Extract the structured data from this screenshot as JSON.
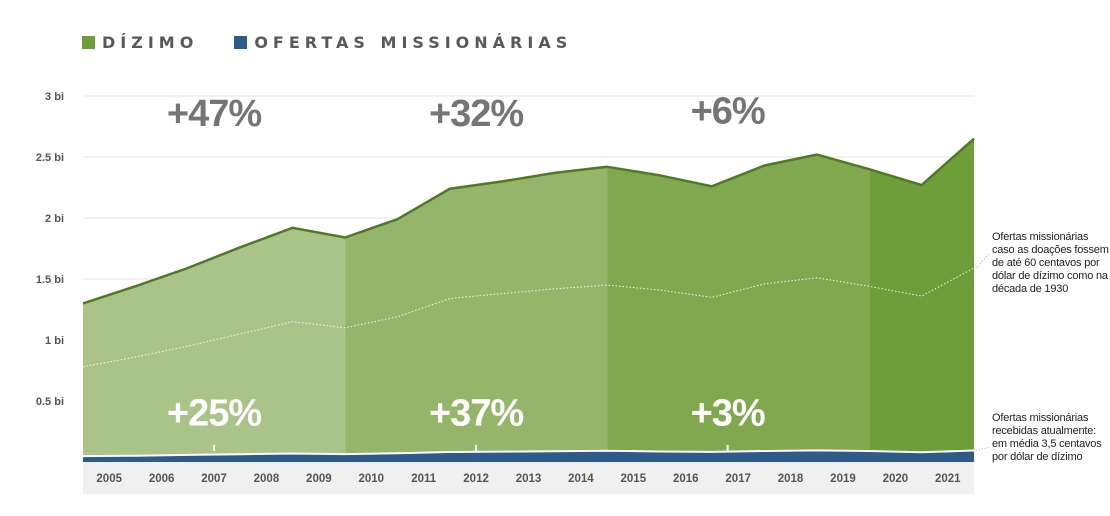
{
  "legend": {
    "items": [
      {
        "label": "DÍZIMO",
        "color": "#6e9e3a"
      },
      {
        "label": "OFERTAS MISSIONÁRIAS",
        "color": "#2f5b8a"
      }
    ]
  },
  "notes": {
    "projection": "Ofertas missionárias caso as doações fossem de até 60 centavos por dólar de dízimo como na década de 1930",
    "actual": "Ofertas missionárias recebidas atualmente: em média 3,5 centavos por dólar de dízimo"
  },
  "chart_data": {
    "type": "area",
    "categories": [
      "2005",
      "2006",
      "2007",
      "2008",
      "2009",
      "2010",
      "2011",
      "2012",
      "2013",
      "2014",
      "2015",
      "2016",
      "2017",
      "2018",
      "2019",
      "2020",
      "2021"
    ],
    "x_start": 2004.5,
    "x_end": 2021.5,
    "y_ticks": [
      {
        "value": 0.5,
        "label": "0.5 bi"
      },
      {
        "value": 1.0,
        "label": "1 bi"
      },
      {
        "value": 1.5,
        "label": "1.5 bi"
      },
      {
        "value": 2.0,
        "label": "2 bi"
      },
      {
        "value": 2.5,
        "label": "2.5 bi"
      },
      {
        "value": 3.0,
        "label": "3 bi"
      }
    ],
    "ylim": [
      0,
      3.0
    ],
    "grid": true,
    "series": [
      {
        "name": "DÍZIMO",
        "color": "#6e9e3a",
        "x": [
          2004.5,
          2005.5,
          2006.5,
          2007.5,
          2008.5,
          2009.5,
          2010.5,
          2011.5,
          2012.5,
          2013.5,
          2014.5,
          2015.5,
          2016.5,
          2017.5,
          2018.5,
          2019.5,
          2020.5,
          2021.5
        ],
        "values": [
          1.3,
          1.44,
          1.59,
          1.76,
          1.92,
          1.84,
          1.99,
          2.24,
          2.3,
          2.37,
          2.42,
          2.35,
          2.26,
          2.43,
          2.52,
          2.4,
          2.27,
          2.65
        ]
      },
      {
        "name": "projection",
        "color": "#ffffff",
        "x": [
          2004.5,
          2005.5,
          2006.5,
          2007.5,
          2008.5,
          2009.5,
          2010.5,
          2011.5,
          2012.5,
          2013.5,
          2014.5,
          2015.5,
          2016.5,
          2017.5,
          2018.5,
          2019.5,
          2020.5,
          2021.5
        ],
        "values": [
          0.78,
          0.86,
          0.95,
          1.05,
          1.15,
          1.1,
          1.19,
          1.34,
          1.38,
          1.42,
          1.45,
          1.41,
          1.35,
          1.46,
          1.51,
          1.44,
          1.36,
          1.59
        ]
      },
      {
        "name": "OFERTAS MISSIONÁRIAS",
        "color": "#2f5b8a",
        "x": [
          2004.5,
          2005.5,
          2006.5,
          2007.5,
          2008.5,
          2009.5,
          2010.5,
          2011.5,
          2012.5,
          2013.5,
          2014.5,
          2015.5,
          2016.5,
          2017.5,
          2018.5,
          2019.5,
          2020.5,
          2021.5
        ],
        "values": [
          0.048,
          0.052,
          0.058,
          0.064,
          0.07,
          0.065,
          0.072,
          0.082,
          0.085,
          0.088,
          0.092,
          0.086,
          0.083,
          0.09,
          0.095,
          0.09,
          0.08,
          0.094
        ]
      }
    ],
    "periods": [
      {
        "start": 2004.5,
        "end": 2009.5,
        "color": "#a9c389"
      },
      {
        "start": 2009.5,
        "end": 2014.5,
        "color": "#95b56b"
      },
      {
        "start": 2014.5,
        "end": 2019.5,
        "color": "#82a84f"
      },
      {
        "start": 2019.5,
        "end": 2021.5,
        "color": "#6e9e3a"
      }
    ],
    "annotations": [
      {
        "text": "+47%",
        "x": 2007,
        "y": 2.87,
        "size": 38
      },
      {
        "text": "+32%",
        "x": 2012,
        "y": 2.87,
        "size": 38
      },
      {
        "text": "+6%",
        "x": 2016.8,
        "y": 2.89,
        "size": 38
      },
      {
        "text": "+25%",
        "x": 2007,
        "y": 0.3,
        "size": 38,
        "tick": true
      },
      {
        "text": "+37%",
        "x": 2012,
        "y": 0.3,
        "size": 38,
        "tick": true
      },
      {
        "text": "+3%",
        "x": 2016.8,
        "y": 0.3,
        "size": 38,
        "tick": true
      }
    ]
  }
}
